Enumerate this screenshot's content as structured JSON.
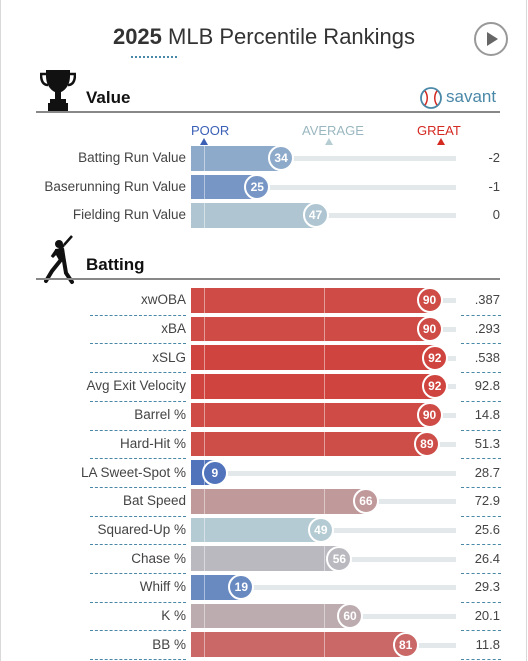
{
  "header": {
    "title_year": "2025",
    "title_rest": " MLB Percentile Rankings",
    "play_icon": "play-icon"
  },
  "sections": {
    "value": {
      "title": "Value",
      "icon": "trophy-icon"
    },
    "batting": {
      "title": "Batting",
      "icon": "batter-icon"
    }
  },
  "branding": {
    "logo_text": "savant",
    "logo_icon": "baseball-icon"
  },
  "scale": {
    "poor": "POOR",
    "average": "AVERAGE",
    "great": "GREAT"
  },
  "colors": {
    "poor": "#3a5fb5",
    "average": "#b6cdd4",
    "great": "#d42a22",
    "title_underline": "#4a88a8"
  },
  "chart_data": [
    {
      "type": "bar",
      "section": "Value",
      "percentile_range": [
        0,
        100
      ],
      "categories": [
        "Batting Run Value",
        "Baserunning Run Value",
        "Fielding Run Value"
      ],
      "percentiles": [
        34,
        25,
        47
      ],
      "values": [
        "-2",
        "-1",
        "0"
      ]
    },
    {
      "type": "bar",
      "section": "Batting",
      "percentile_range": [
        0,
        100
      ],
      "categories": [
        "xwOBA",
        "xBA",
        "xSLG",
        "Avg Exit Velocity",
        "Barrel %",
        "Hard-Hit %",
        "LA Sweet-Spot %",
        "Bat Speed",
        "Squared-Up %",
        "Chase %",
        "Whiff %",
        "K %",
        "BB %"
      ],
      "percentiles": [
        90,
        90,
        92,
        92,
        90,
        89,
        9,
        66,
        49,
        56,
        19,
        60,
        81
      ],
      "values": [
        ".387",
        ".293",
        ".538",
        "92.8",
        "14.8",
        "51.3",
        "28.7",
        "72.9",
        "25.6",
        "26.4",
        "29.3",
        "20.1",
        "11.8"
      ]
    }
  ]
}
